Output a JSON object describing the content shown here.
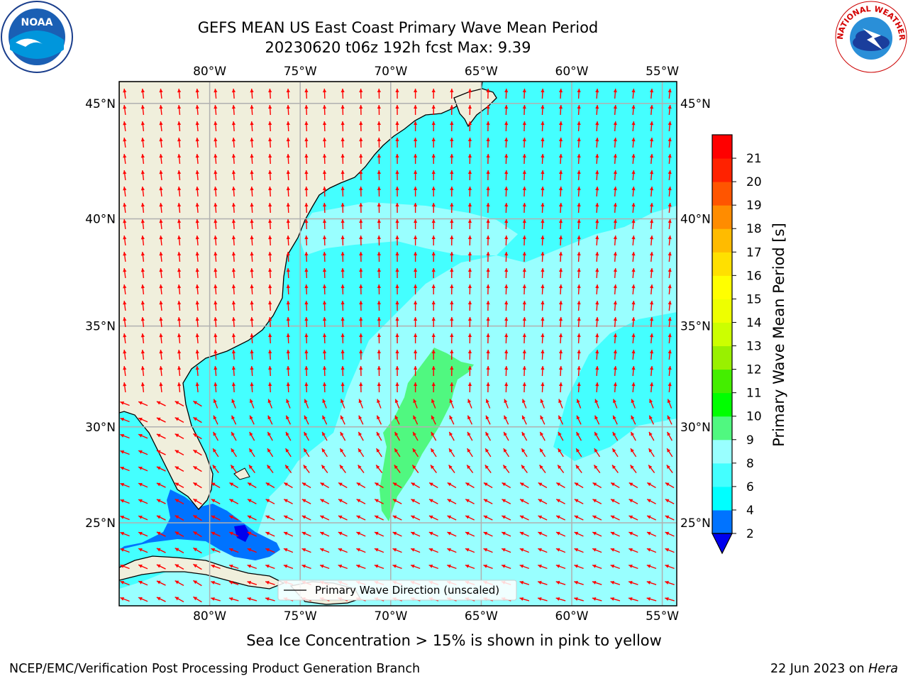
{
  "title": {
    "line1": "GEFS MEAN US East Coast Primary Wave Mean Period",
    "line2": "20230620 t06z 192h fcst   Max: 9.39"
  },
  "map": {
    "lon_range": [
      -85,
      -54.2
    ],
    "lat_range": [
      20.5,
      45.9
    ],
    "lon_ticks": [
      -80,
      -75,
      -70,
      -65,
      -60,
      -55
    ],
    "lat_ticks": [
      25,
      30,
      35,
      40,
      45
    ],
    "lon_tick_labels": [
      "80°W",
      "75°W",
      "70°W",
      "65°W",
      "60°W",
      "55°W"
    ],
    "lat_tick_labels": [
      "25°N",
      "30°N",
      "35°N",
      "40°N",
      "45°N"
    ],
    "gridlines": true,
    "land_color": "#f0efdc",
    "arrow_color": "#ff0000",
    "period_max": 9.39
  },
  "legend": {
    "label": "Primary Wave Direction (unscaled)",
    "placement": "bottom-center"
  },
  "colorbar": {
    "label": "Primary Wave Mean Period [s]",
    "ticks": [
      2,
      4,
      6,
      8,
      9,
      10,
      11,
      12,
      13,
      14,
      15,
      16,
      17,
      18,
      19,
      20,
      21
    ],
    "colors": [
      "#0073ff",
      "#00ffff",
      "#44ffff",
      "#99ffff",
      "#50f880",
      "#00ff00",
      "#44ee00",
      "#99f000",
      "#ccff00",
      "#eeff00",
      "#ffff00",
      "#ffe000",
      "#ffbb00",
      "#ff8c00",
      "#ff5500",
      "#ff2200",
      "#ff0000"
    ],
    "extend_color": "#0000ee"
  },
  "footer": {
    "ice_note": "Sea Ice Concentration > 15% is shown in pink to yellow",
    "credit": "NCEP/EMC/Verification Post Processing Product Generation Branch",
    "date": "22 Jun 2023 on ",
    "host": "Hera"
  },
  "logos": {
    "noaa_text": "NOAA",
    "nws_text": "NATIONAL WEATHER SERVICE"
  }
}
